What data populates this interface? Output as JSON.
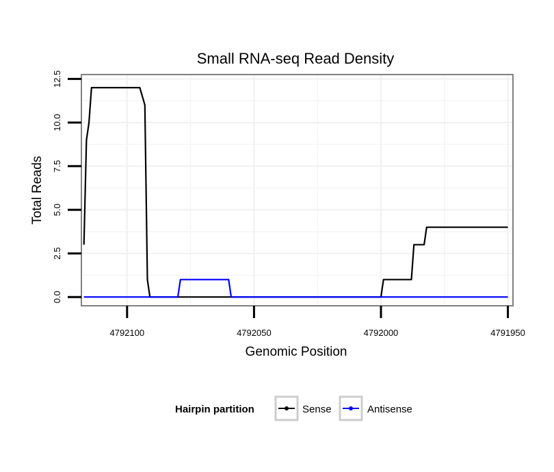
{
  "chart_data": {
    "type": "line",
    "title": "Small RNA-seq Read Density",
    "xlabel": "Genomic Position",
    "ylabel": "Total Reads",
    "x_reversed": true,
    "xlim": [
      4792118,
      4791948
    ],
    "ylim": [
      -0.5,
      12.75
    ],
    "x_ticks": [
      4792100,
      4792050,
      4792000,
      4791950
    ],
    "y_ticks": [
      0.0,
      2.5,
      5.0,
      7.5,
      10.0,
      12.5
    ],
    "x_tick_labels": [
      "4792100",
      "4792050",
      "4792000",
      "4791950"
    ],
    "y_tick_labels": [
      "0.0",
      "2.5",
      "5.0",
      "7.5",
      "10.0",
      "12.5"
    ],
    "grid": true,
    "legend": {
      "title": "Hairpin partition",
      "placement": "bottom",
      "entries": [
        {
          "name": "Sense",
          "color": "#000000"
        },
        {
          "name": "Antisense",
          "color": "#0000ff"
        }
      ]
    },
    "series": [
      {
        "name": "Sense",
        "color": "#000000",
        "x": [
          4792117,
          4792116,
          4792115,
          4792114,
          4792112,
          4792095,
          4792093,
          4792092,
          4792091,
          4792090,
          4792080,
          4792000,
          4791999,
          4791988,
          4791987,
          4791983,
          4791982,
          4791967,
          4791950
        ],
        "y": [
          3,
          9,
          10,
          12,
          12,
          12,
          11,
          1,
          0,
          0,
          0,
          0,
          1,
          1,
          3,
          3,
          4,
          4,
          4
        ]
      },
      {
        "name": "Antisense",
        "color": "#0000ff",
        "x": [
          4792117,
          4792080,
          4792079,
          4792060,
          4792059,
          4792050,
          4791950
        ],
        "y": [
          0,
          0,
          1,
          1,
          0,
          0,
          0
        ]
      }
    ]
  }
}
